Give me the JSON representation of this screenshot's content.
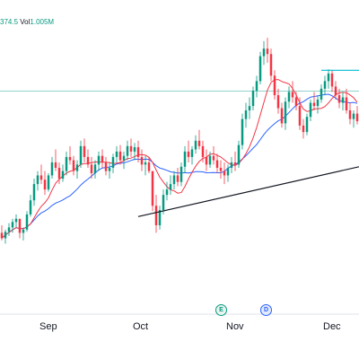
{
  "info": {
    "price_text": "374.5",
    "volume_label": "Vol",
    "volume_value": "1.005M"
  },
  "chart_data": {
    "type": "candlestick",
    "x_ticks": [
      "Sep",
      "Oct",
      "Nov",
      "Dec"
    ],
    "event_markers": [
      "E",
      "D"
    ],
    "colors": {
      "up": "#089981",
      "down": "#f23645",
      "ma_fast": "#f23645",
      "ma_slow": "#2962ff",
      "trendline": "#131722",
      "resistance": "#00bcd4",
      "price_line": "#26a69a"
    },
    "candles": [
      [
        205,
        212,
        198,
        200
      ],
      [
        200,
        208,
        195,
        206
      ],
      [
        206,
        214,
        202,
        210
      ],
      [
        210,
        218,
        205,
        215
      ],
      [
        215,
        222,
        210,
        218
      ],
      [
        218,
        216,
        200,
        205
      ],
      [
        205,
        210,
        198,
        208
      ],
      [
        208,
        225,
        206,
        222
      ],
      [
        222,
        240,
        220,
        235
      ],
      [
        235,
        255,
        230,
        250
      ],
      [
        250,
        262,
        244,
        258
      ],
      [
        258,
        268,
        250,
        254
      ],
      [
        254,
        262,
        240,
        245
      ],
      [
        245,
        260,
        243,
        258
      ],
      [
        258,
        275,
        255,
        270
      ],
      [
        270,
        282,
        262,
        265
      ],
      [
        265,
        270,
        250,
        255
      ],
      [
        255,
        268,
        252,
        262
      ],
      [
        262,
        280,
        258,
        275
      ],
      [
        275,
        285,
        268,
        272
      ],
      [
        272,
        276,
        258,
        262
      ],
      [
        262,
        272,
        255,
        268
      ],
      [
        268,
        290,
        265,
        285
      ],
      [
        285,
        292,
        270,
        275
      ],
      [
        275,
        282,
        265,
        268
      ],
      [
        268,
        275,
        255,
        260
      ],
      [
        260,
        272,
        255,
        268
      ],
      [
        268,
        280,
        262,
        276
      ],
      [
        276,
        282,
        265,
        270
      ],
      [
        270,
        275,
        258,
        262
      ],
      [
        262,
        270,
        255,
        265
      ],
      [
        265,
        278,
        260,
        275
      ],
      [
        275,
        285,
        270,
        280
      ],
      [
        280,
        286,
        268,
        272
      ],
      [
        272,
        280,
        264,
        276
      ],
      [
        276,
        290,
        272,
        285
      ],
      [
        285,
        292,
        275,
        280
      ],
      [
        280,
        288,
        272,
        284
      ],
      [
        284,
        290,
        270,
        275
      ],
      [
        275,
        282,
        262,
        268
      ],
      [
        268,
        276,
        258,
        270
      ],
      [
        270,
        275,
        260,
        262
      ],
      [
        262,
        260,
        225,
        230
      ],
      [
        230,
        240,
        205,
        212
      ],
      [
        212,
        230,
        208,
        226
      ],
      [
        226,
        245,
        222,
        240
      ],
      [
        240,
        252,
        235,
        245
      ],
      [
        245,
        258,
        240,
        250
      ],
      [
        250,
        262,
        245,
        258
      ],
      [
        258,
        265,
        248,
        252
      ],
      [
        252,
        270,
        248,
        266
      ],
      [
        266,
        285,
        260,
        280
      ],
      [
        280,
        290,
        270,
        275
      ],
      [
        275,
        285,
        268,
        282
      ],
      [
        282,
        295,
        278,
        290
      ],
      [
        290,
        300,
        282,
        285
      ],
      [
        285,
        290,
        270,
        275
      ],
      [
        275,
        282,
        262,
        268
      ],
      [
        268,
        280,
        265,
        276
      ],
      [
        276,
        285,
        268,
        272
      ],
      [
        272,
        278,
        260,
        265
      ],
      [
        265,
        272,
        255,
        262
      ],
      [
        262,
        270,
        250,
        258
      ],
      [
        258,
        268,
        252,
        265
      ],
      [
        265,
        275,
        260,
        270
      ],
      [
        270,
        280,
        262,
        268
      ],
      [
        268,
        290,
        265,
        286
      ],
      [
        286,
        315,
        282,
        310
      ],
      [
        310,
        325,
        302,
        318
      ],
      [
        318,
        330,
        310,
        322
      ],
      [
        322,
        340,
        318,
        336
      ],
      [
        336,
        350,
        330,
        345
      ],
      [
        345,
        372,
        342,
        368
      ],
      [
        368,
        382,
        360,
        375
      ],
      [
        375,
        385,
        362,
        370
      ],
      [
        370,
        375,
        345,
        350
      ],
      [
        350,
        355,
        328,
        332
      ],
      [
        332,
        338,
        315,
        320
      ],
      [
        320,
        325,
        302,
        306
      ],
      [
        306,
        330,
        300,
        326
      ],
      [
        326,
        340,
        320,
        335
      ],
      [
        335,
        345,
        325,
        330
      ],
      [
        330,
        335,
        318,
        322
      ],
      [
        322,
        330,
        300,
        304
      ],
      [
        304,
        310,
        292,
        298
      ],
      [
        298,
        315,
        295,
        312
      ],
      [
        312,
        328,
        308,
        325
      ],
      [
        325,
        335,
        318,
        322
      ],
      [
        322,
        332,
        315,
        328
      ],
      [
        328,
        342,
        325,
        338
      ],
      [
        338,
        350,
        332,
        345
      ],
      [
        345,
        356,
        338,
        352
      ],
      [
        352,
        355,
        335,
        340
      ],
      [
        340,
        345,
        328,
        332
      ],
      [
        332,
        338,
        320,
        325
      ],
      [
        325,
        335,
        318,
        330
      ],
      [
        330,
        338,
        315,
        318
      ],
      [
        318,
        325,
        305,
        310
      ],
      [
        310,
        318,
        302,
        315
      ],
      [
        315,
        322,
        305,
        308
      ]
    ],
    "trendline": {
      "from": {
        "index": 38,
        "price": 220
      },
      "to": {
        "index": 99,
        "price": 266
      }
    },
    "resistance": {
      "from_index": 89,
      "to_index": 99,
      "price": 355
    },
    "price_line": {
      "price": 336
    },
    "y_range": [
      130,
      395
    ]
  }
}
